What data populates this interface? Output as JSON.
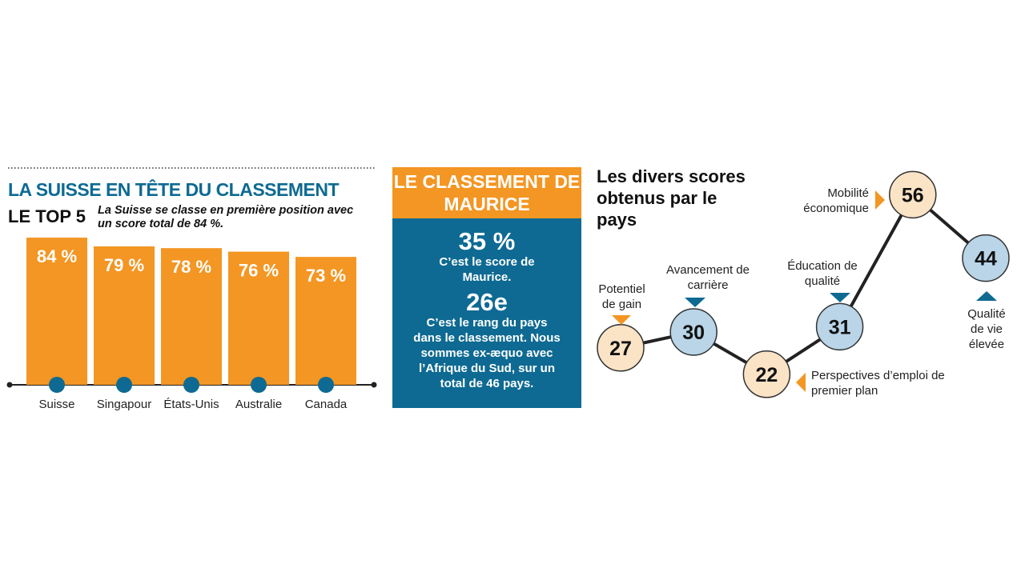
{
  "chart_data": [
    {
      "type": "bar",
      "title": "LA SUISSE EN TÊTE DU CLASSEMENT",
      "section_label": "LE TOP 5",
      "subtitle": "La Suisse se classe en première position avec un score total de 84 %.",
      "categories": [
        "Suisse",
        "Singapour",
        "États-Unis",
        "Australie",
        "Canada"
      ],
      "values": [
        84,
        79,
        78,
        76,
        73
      ],
      "value_labels": [
        "84 %",
        "79 %",
        "78 %",
        "76 %",
        "73 %"
      ],
      "color": "#f39623",
      "marker_color": "#0e6a92"
    },
    {
      "type": "line",
      "title": "Les divers scores obtenus par le pays",
      "categories": [
        "Potentiel de gain",
        "Avancement de carrière",
        "Perspectives d’emploi de premier plan",
        "Éducation de qualité",
        "Mobilité économique",
        "Qualité de vie élevée"
      ],
      "values": [
        27,
        30,
        22,
        31,
        56,
        44
      ],
      "colors": [
        "#fbe3c6",
        "#b9d5e7",
        "#fbe3c6",
        "#b9d5e7",
        "#fbe3c6",
        "#b9d5e7"
      ],
      "marker_colors": [
        "#f39623",
        "#0e6a92",
        "#f39623",
        "#0e6a92",
        "#f39623",
        "#0e6a92"
      ]
    }
  ],
  "ranking_box": {
    "title": "LE CLASSEMENT DE MAURICE",
    "score": "35 %",
    "score_text": "C’est le score de Maurice.",
    "rank": "26e",
    "rank_text": "C’est le rang du pays dans le classement. Nous sommes ex-æquo avec l’Afrique du Sud, sur un total de 46 pays."
  }
}
